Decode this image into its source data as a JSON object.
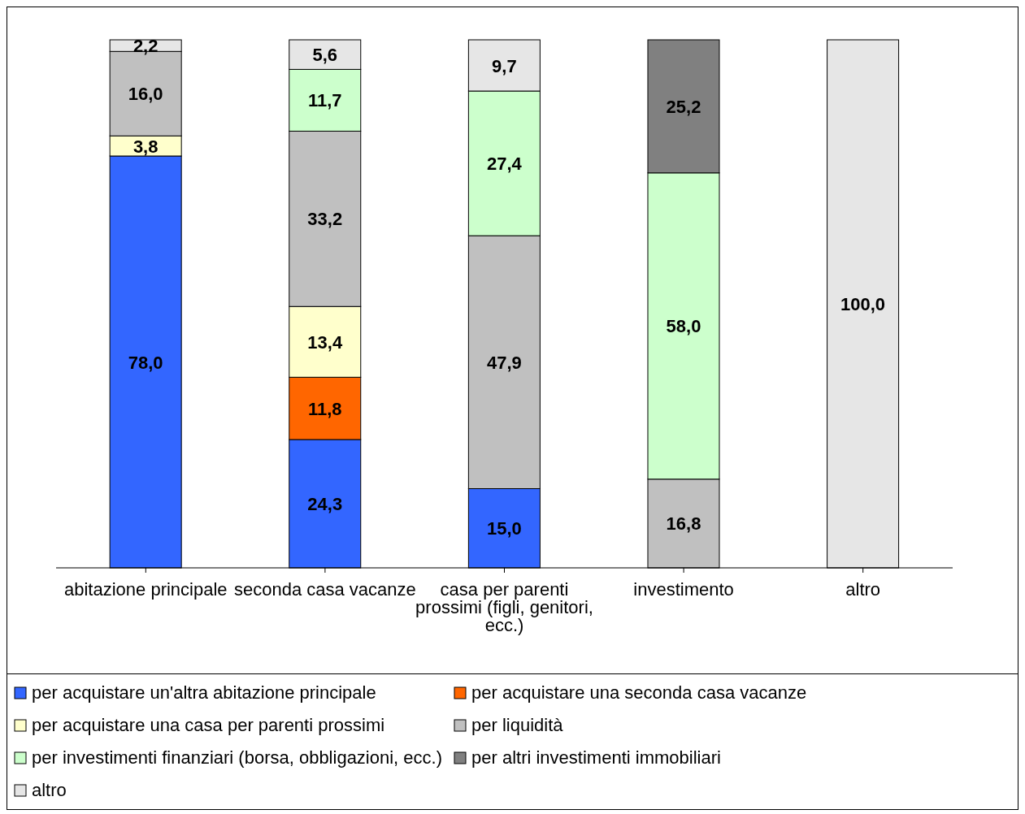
{
  "chart_data": {
    "type": "bar",
    "stacked": true,
    "legend": "bottom",
    "tick_labels": "x",
    "categories": [
      "abitazione principale",
      "seconda casa vacanze",
      "casa per parenti prossimi (figli, genitori, ecc.)",
      "investimento",
      "altro"
    ],
    "series": [
      {
        "name": "per acquistare un'altra abitazione  principale",
        "color": "#3366ff",
        "values": [
          78.0,
          24.3,
          15.0,
          null,
          null
        ],
        "value_labels": [
          "78,0",
          "24,3",
          "15,0",
          null,
          null
        ]
      },
      {
        "name": "per acquistare una seconda casa vacanze",
        "color": "#ff6600",
        "values": [
          null,
          11.8,
          null,
          null,
          null
        ],
        "value_labels": [
          null,
          "11,8",
          null,
          null,
          null
        ]
      },
      {
        "name": "per acquistare una casa per parenti prossimi",
        "color": "#ffffcc",
        "values": [
          3.8,
          13.4,
          null,
          null,
          null
        ],
        "value_labels": [
          "3,8",
          "13,4",
          null,
          null,
          null
        ]
      },
      {
        "name": "per liquidità",
        "color": "#c0c0c0",
        "values": [
          16.0,
          33.2,
          47.9,
          16.8,
          null
        ],
        "value_labels": [
          "16,0",
          "33,2",
          "47,9",
          "16,8",
          null
        ]
      },
      {
        "name": "per investimenti finanziari (borsa, obbligazioni, ecc.)",
        "color": "#ccffcc",
        "values": [
          null,
          11.7,
          27.4,
          58.0,
          null
        ],
        "value_labels": [
          null,
          "11,7",
          "27,4",
          "58,0",
          null
        ]
      },
      {
        "name": "per altri investimenti immobiliari",
        "color": "#808080",
        "values": [
          null,
          null,
          null,
          25.2,
          null
        ],
        "value_labels": [
          null,
          null,
          null,
          "25,2",
          null
        ]
      },
      {
        "name": "altro",
        "color": "#e6e6e6",
        "values": [
          2.2,
          5.6,
          9.7,
          null,
          100.0
        ],
        "value_labels": [
          "2,2",
          "5,6",
          "9,7",
          null,
          "100,0"
        ]
      }
    ]
  }
}
